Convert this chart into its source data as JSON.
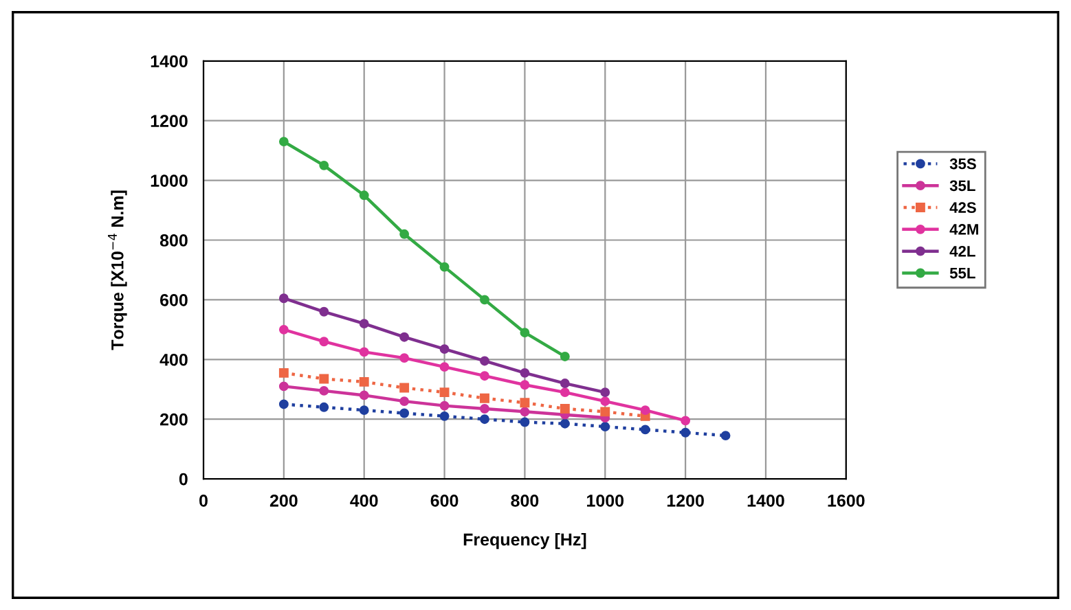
{
  "chart_data": {
    "type": "line",
    "xlabel": "Frequency [Hz]",
    "ylabel": "Torque [X10$^{−4}$ N.m]",
    "x": [
      200,
      300,
      400,
      500,
      600,
      700,
      800,
      900,
      1000,
      1100,
      1200,
      1300
    ],
    "series": [
      {
        "name": "35S",
        "color": "#1f3f9f",
        "line_style": "dotted",
        "marker": "circle",
        "values": [
          250,
          240,
          230,
          220,
          210,
          200,
          190,
          185,
          175,
          165,
          155,
          145
        ]
      },
      {
        "name": "35L",
        "color": "#cc3399",
        "line_style": "solid",
        "marker": "circle",
        "values": [
          310,
          295,
          280,
          260,
          245,
          235,
          225,
          215,
          205,
          null,
          null,
          null
        ]
      },
      {
        "name": "42S",
        "color": "#ee6644",
        "line_style": "dotted",
        "marker": "square",
        "values": [
          355,
          335,
          325,
          305,
          290,
          270,
          255,
          235,
          225,
          210,
          null,
          null
        ]
      },
      {
        "name": "42M",
        "color": "#e0339f",
        "line_style": "solid",
        "marker": "circle",
        "values": [
          500,
          460,
          425,
          405,
          375,
          345,
          315,
          290,
          260,
          230,
          195,
          null
        ]
      },
      {
        "name": "42L",
        "color": "#7f2f8f",
        "line_style": "solid",
        "marker": "circle",
        "values": [
          605,
          560,
          520,
          475,
          435,
          395,
          355,
          320,
          290,
          null,
          null,
          null
        ]
      },
      {
        "name": "55L",
        "color": "#33aa44",
        "line_style": "solid",
        "marker": "circle",
        "values": [
          1130,
          1050,
          950,
          820,
          710,
          600,
          490,
          410,
          null,
          null,
          null,
          null
        ]
      }
    ],
    "xlim": [
      0,
      1600
    ],
    "xticks": [
      0,
      200,
      400,
      600,
      800,
      1000,
      1200,
      1400,
      1600
    ],
    "ylim": [
      0,
      1400
    ],
    "yticks": [
      0,
      200,
      400,
      600,
      800,
      1000,
      1200,
      1400
    ],
    "grid": true,
    "legend": "right"
  }
}
